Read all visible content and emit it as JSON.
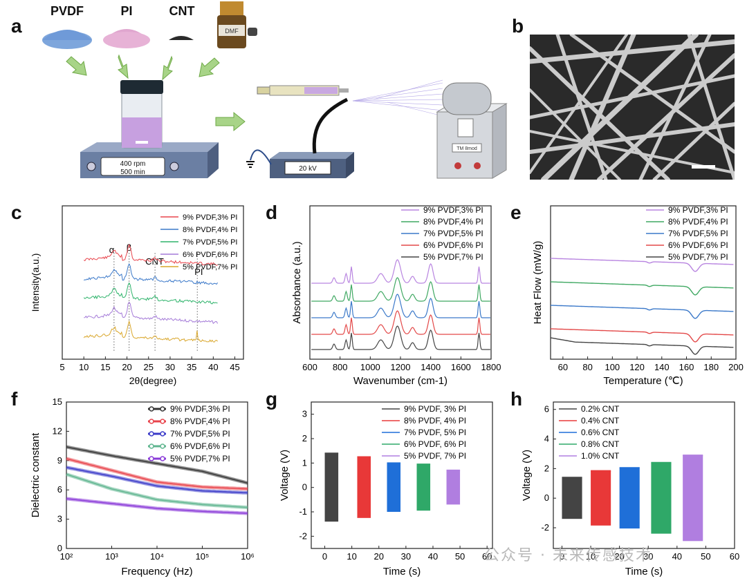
{
  "panel_letters": {
    "a": "a",
    "b": "b",
    "c": "c",
    "d": "d",
    "e": "e",
    "f": "f",
    "g": "g",
    "h": "h"
  },
  "schematic": {
    "materials": [
      "PVDF",
      "PI",
      "CNT"
    ],
    "bottle_label": "DMF",
    "stirrer_line1": "400 rpm",
    "stirrer_line2": "500 min",
    "hv_readout": "20 kV",
    "collector_label": "TM 8mod"
  },
  "watermark": "公众号 · 未来传感技术",
  "colors": {
    "c_series": [
      "#e8434b",
      "#3a78c9",
      "#2db36a",
      "#a47ad8",
      "#d9a62a"
    ],
    "d_series": [
      "#b884e0",
      "#3fa862",
      "#3a78c9",
      "#e34848",
      "#444444"
    ],
    "f_series": [
      "#333333",
      "#e8434b",
      "#3a3ac8",
      "#5fb58f",
      "#8a3ad8"
    ],
    "g_series": [
      "#444444",
      "#e83838",
      "#1f6fd8",
      "#2fa868",
      "#b07ee0"
    ],
    "h_series": [
      "#444444",
      "#e83838",
      "#1f6fd8",
      "#2fa868",
      "#b07ee0"
    ]
  },
  "chart_data": [
    {
      "id": "c",
      "type": "line",
      "xlabel": "2θ(degree)",
      "ylabel": "Intensity(a.u.)",
      "xlim": [
        5,
        47
      ],
      "xticks": [
        5,
        10,
        15,
        20,
        25,
        30,
        35,
        40,
        45
      ],
      "legend": [
        "9% PVDF,3% PI",
        "8% PVDF,4% PI",
        "7% PVDF,5% PI",
        "6% PVDF,6% PI",
        "5% PVDF,7% PI"
      ],
      "legend_position": "top-right",
      "annotations": [
        "α",
        "β",
        "CNT",
        "PI"
      ],
      "peak_lines": [
        17.0,
        20.5,
        26.5,
        36.3
      ]
    },
    {
      "id": "d",
      "type": "line",
      "xlabel": "Wavenumber (cm-1)",
      "ylabel": "Absorbance (a.u.)",
      "xlim": [
        600,
        1800
      ],
      "xticks": [
        600,
        800,
        1000,
        1200,
        1400,
        1600,
        1800
      ],
      "legend": [
        "9% PVDF,3% PI",
        "8% PVDF,4% PI",
        "7% PVDF,5% PI",
        "6% PVDF,6% PI",
        "5% PVDF,7% PI"
      ],
      "legend_position": "top-right"
    },
    {
      "id": "e",
      "type": "line",
      "xlabel": "Temperature (℃)",
      "ylabel": "Heat Flow (mW/g)",
      "xlim": [
        50,
        200
      ],
      "xticks": [
        60,
        80,
        100,
        120,
        140,
        160,
        180,
        200
      ],
      "legend": [
        "9% PVDF,3% PI",
        "8% PVDF,4% PI",
        "7% PVDF,5% PI",
        "6% PVDF,6% PI",
        "5% PVDF,7% PI"
      ],
      "legend_position": "top-right"
    },
    {
      "id": "f",
      "type": "line",
      "xlabel": "Frequency (Hz)",
      "ylabel": "Dielectric constant",
      "xscale": "log",
      "xlim": [
        100,
        1000000
      ],
      "ylim": [
        0,
        15
      ],
      "yticks": [
        0,
        3,
        6,
        9,
        12,
        15
      ],
      "xtick_labels": [
        "10²",
        "10³",
        "10⁴",
        "10⁵",
        "10⁶"
      ],
      "legend": [
        "9% PVDF,3% PI",
        "8% PVDF,4% PI",
        "7% PVDF,5% PI",
        "6% PVDF,6% PI",
        "5% PVDF,7% PI"
      ],
      "legend_position": "top-right",
      "series": [
        {
          "name": "9% PVDF,3% PI",
          "x": [
            100,
            1000,
            10000,
            100000,
            1000000
          ],
          "values": [
            10.4,
            9.5,
            8.7,
            7.9,
            6.7
          ]
        },
        {
          "name": "8% PVDF,4% PI",
          "x": [
            100,
            1000,
            10000,
            100000,
            1000000
          ],
          "values": [
            9.2,
            8.0,
            6.8,
            6.3,
            6.1
          ]
        },
        {
          "name": "7% PVDF,5% PI",
          "x": [
            100,
            1000,
            10000,
            100000,
            1000000
          ],
          "values": [
            8.3,
            7.4,
            6.4,
            5.9,
            5.7
          ]
        },
        {
          "name": "6% PVDF,6% PI",
          "x": [
            100,
            1000,
            10000,
            100000,
            1000000
          ],
          "values": [
            7.6,
            6.1,
            5.0,
            4.5,
            4.2
          ]
        },
        {
          "name": "5% PVDF,7% PI",
          "x": [
            100,
            1000,
            10000,
            100000,
            1000000
          ],
          "values": [
            5.1,
            4.6,
            4.1,
            3.8,
            3.6
          ]
        }
      ]
    },
    {
      "id": "g",
      "type": "bar",
      "xlabel": "Time (s)",
      "ylabel": "Voltage (V)",
      "xlim": [
        -5,
        62
      ],
      "ylim": [
        -2.5,
        3.5
      ],
      "xticks": [
        0,
        10,
        20,
        30,
        40,
        50,
        60
      ],
      "yticks": [
        -2,
        -1,
        0,
        1,
        2,
        3
      ],
      "legend_position": "top-right",
      "series": [
        {
          "name": "9% PVDF, 3% PI",
          "t": [
            0,
            5
          ],
          "values": [
            1.4,
            -1.4
          ]
        },
        {
          "name": "8% PVDF, 4% PI",
          "t": [
            12,
            17
          ],
          "values": [
            1.25,
            -1.25
          ]
        },
        {
          "name": "7% PVDF, 5% PI",
          "t": [
            23,
            28
          ],
          "values": [
            1.0,
            -1.0
          ]
        },
        {
          "name": "6% PVDF, 6% PI",
          "t": [
            34,
            39
          ],
          "values": [
            0.95,
            -0.95
          ]
        },
        {
          "name": "5% PVDF, 7% PI",
          "t": [
            45,
            50
          ],
          "values": [
            0.7,
            -0.7
          ]
        }
      ]
    },
    {
      "id": "h",
      "type": "bar",
      "xlabel": "Time (s)",
      "ylabel": "Voltage (V)",
      "xlim": [
        -3,
        60
      ],
      "ylim": [
        -3.4,
        6.5
      ],
      "xticks": [
        0,
        10,
        20,
        30,
        40,
        50,
        60
      ],
      "yticks": [
        -2,
        0,
        2,
        4,
        6
      ],
      "legend_position": "top-left",
      "series": [
        {
          "name": "0.2% CNT",
          "t": [
            0,
            7
          ],
          "values": [
            1.4,
            -1.4
          ]
        },
        {
          "name": "0.4% CNT",
          "t": [
            10,
            17
          ],
          "values": [
            1.85,
            -1.85
          ]
        },
        {
          "name": "0.6% CNT",
          "t": [
            20,
            27
          ],
          "values": [
            2.05,
            -2.05
          ]
        },
        {
          "name": "0.8% CNT",
          "t": [
            31,
            38
          ],
          "values": [
            2.4,
            -2.4
          ]
        },
        {
          "name": "1.0% CNT",
          "t": [
            42,
            49
          ],
          "values": [
            2.9,
            -2.9
          ]
        }
      ]
    }
  ]
}
